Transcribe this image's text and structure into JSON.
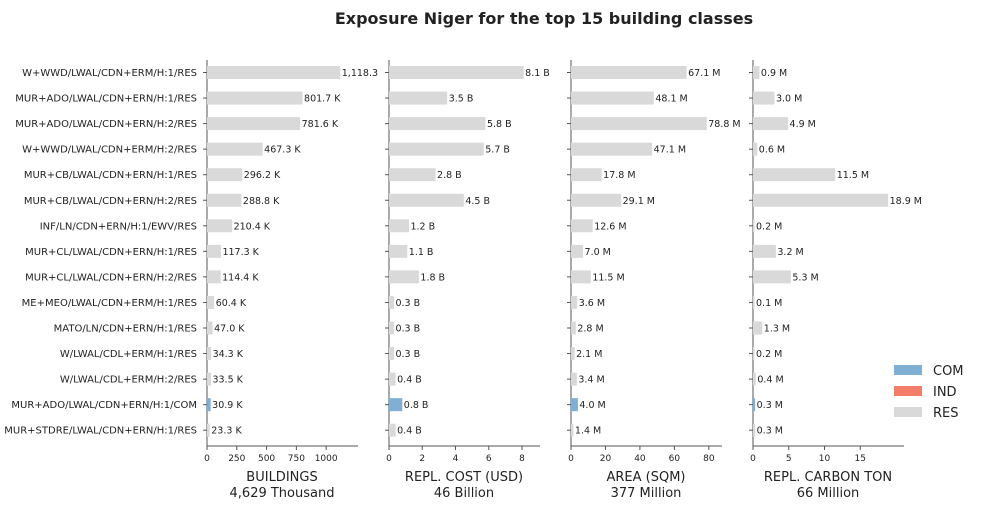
{
  "chart_data": {
    "type": "bar",
    "orientation": "horizontal",
    "title": "Exposure Niger for the top 15 building classes",
    "categories": [
      "W+WWD/LWAL/CDN+ERM/H:1/RES",
      "MUR+ADO/LWAL/CDN+ERN/H:1/RES",
      "MUR+ADO/LWAL/CDN+ERN/H:2/RES",
      "W+WWD/LWAL/CDN+ERM/H:2/RES",
      "MUR+CB/LWAL/CDN+ERN/H:1/RES",
      "MUR+CB/LWAL/CDN+ERN/H:2/RES",
      "INF/LN/CDN+ERN/H:1/EWV/RES",
      "MUR+CL/LWAL/CDN+ERN/H:1/RES",
      "MUR+CL/LWAL/CDN+ERN/H:2/RES",
      "ME+MEO/LWAL/CDN+ERM/H:1/RES",
      "MATO/LN/CDN+ERN/H:1/RES",
      "W/LWAL/CDL+ERM/H:1/RES",
      "W/LWAL/CDL+ERM/H:2/RES",
      "MUR+ADO/LWAL/CDN+ERN/H:1/COM",
      "MUR+STDRE/LWAL/CDN+ERN/H:1/RES"
    ],
    "occupancy": [
      "RES",
      "RES",
      "RES",
      "RES",
      "RES",
      "RES",
      "RES",
      "RES",
      "RES",
      "RES",
      "RES",
      "RES",
      "RES",
      "COM",
      "RES"
    ],
    "legend": [
      {
        "name": "COM",
        "color": "#7fb0d3"
      },
      {
        "name": "IND",
        "color": "#f47d6a"
      },
      {
        "name": "RES",
        "color": "#d9d9d9"
      }
    ],
    "legend_position": "right",
    "panels": [
      {
        "xlabel": "BUILDINGS",
        "total": "4,629 Thousand",
        "xlim": [
          0,
          1200
        ],
        "xticks": [
          0,
          250,
          500,
          750,
          1000
        ],
        "values": [
          1118.3,
          801.7,
          781.6,
          467.3,
          296.2,
          288.8,
          210.4,
          117.3,
          114.4,
          60.4,
          47.0,
          34.3,
          33.5,
          30.9,
          23.3
        ],
        "labels": [
          "1,118.3",
          "801.7 K",
          "781.6 K",
          "467.3 K",
          "296.2 K",
          "288.8 K",
          "210.4 K",
          "117.3 K",
          "114.4 K",
          "60.4 K",
          "47.0 K",
          "34.3 K",
          "33.5 K",
          "30.9 K",
          "23.3 K"
        ]
      },
      {
        "xlabel": "REPL. COST (USD)",
        "total": "46 Billion",
        "xlim": [
          0,
          8.6
        ],
        "xticks": [
          0,
          2,
          4,
          6,
          8
        ],
        "values": [
          8.1,
          3.5,
          5.8,
          5.7,
          2.8,
          4.5,
          1.2,
          1.1,
          1.8,
          0.3,
          0.3,
          0.3,
          0.4,
          0.8,
          0.4
        ],
        "labels": [
          "8.1 B",
          "3.5 B",
          "5.8 B",
          "5.7 B",
          "2.8 B",
          "4.5 B",
          "1.2 B",
          "1.1 B",
          "1.8 B",
          "0.3 B",
          "0.3 B",
          "0.3 B",
          "0.4 B",
          "0.8 B",
          "0.4 B"
        ]
      },
      {
        "xlabel": "AREA (SQM)",
        "total": "377 Million",
        "xlim": [
          0,
          83
        ],
        "xticks": [
          0,
          20,
          40,
          60,
          80
        ],
        "values": [
          67.1,
          48.1,
          78.8,
          47.1,
          17.8,
          29.1,
          12.6,
          7.0,
          11.5,
          3.6,
          2.8,
          2.1,
          3.4,
          4.0,
          1.4
        ],
        "labels": [
          "67.1 M",
          "48.1 M",
          "78.8 M",
          "47.1 M",
          "17.8 M",
          "29.1 M",
          "12.6 M",
          "7.0 M",
          "11.5 M",
          "3.6 M",
          "2.8 M",
          "2.1 M",
          "3.4 M",
          "4.0 M",
          "1.4 M"
        ]
      },
      {
        "xlabel": "REPL. CARBON TON",
        "total": "66 Million",
        "xlim": [
          0,
          20
        ],
        "xticks": [
          0,
          5,
          10,
          15
        ],
        "values": [
          0.9,
          3.0,
          4.9,
          0.6,
          11.5,
          18.9,
          0.2,
          3.2,
          5.3,
          0.1,
          1.3,
          0.2,
          0.4,
          0.3,
          0.3
        ],
        "labels": [
          "0.9 M",
          "3.0 M",
          "4.9 M",
          "0.6 M",
          "11.5 M",
          "18.9 M",
          "0.2 M",
          "3.2 M",
          "5.3 M",
          "0.1 M",
          "1.3 M",
          "0.2 M",
          "0.4 M",
          "0.3 M",
          "0.3 M"
        ]
      }
    ]
  }
}
